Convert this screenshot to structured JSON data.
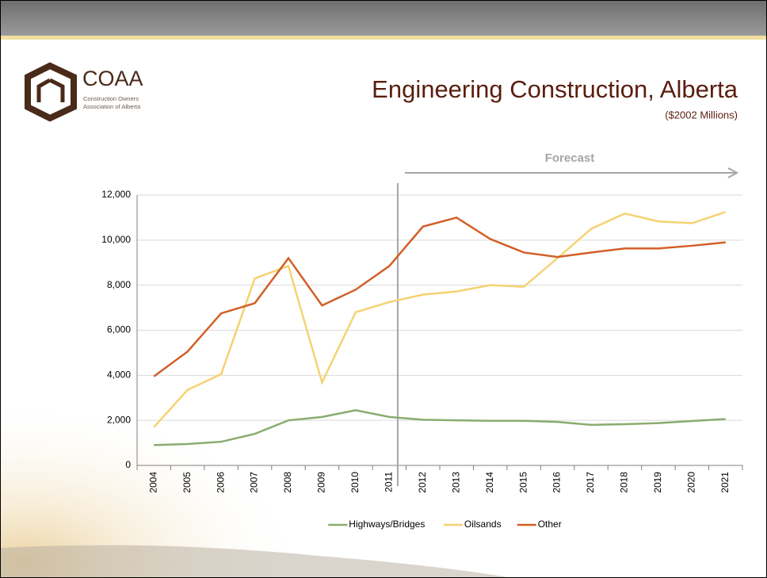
{
  "logo": {
    "name": "COAA",
    "line1": "Construction Owners",
    "line2": "Association of Alberta"
  },
  "chart_data": {
    "type": "line",
    "title": "Engineering Construction, Alberta",
    "subtitle": "($2002 Millions)",
    "annotation": "Forecast",
    "categories": [
      "2004",
      "2005",
      "2006",
      "2007",
      "2008",
      "2009",
      "2010",
      "2011",
      "2012",
      "2013",
      "2014",
      "2015",
      "2016",
      "2017",
      "2018",
      "2019",
      "2020",
      "2021"
    ],
    "series": [
      {
        "name": "Highways/Bridges",
        "color": "#8aac6f",
        "values": [
          900,
          950,
          1050,
          1400,
          2000,
          2150,
          2450,
          2150,
          2030,
          2000,
          1980,
          1980,
          1930,
          1800,
          1830,
          1880,
          1970,
          2060
        ]
      },
      {
        "name": "Oilsands",
        "color": "#f5d272",
        "values": [
          1700,
          3350,
          4050,
          8300,
          8850,
          3680,
          6800,
          7250,
          7580,
          7720,
          8000,
          7930,
          9200,
          10500,
          11180,
          10830,
          10750,
          11250
        ]
      },
      {
        "name": "Other",
        "color": "#d25f27",
        "values": [
          3950,
          5050,
          6750,
          7200,
          9200,
          7100,
          7800,
          8850,
          10600,
          11000,
          10050,
          9450,
          9250,
          9450,
          9630,
          9630,
          9750,
          9900
        ]
      }
    ],
    "ylim": [
      0,
      12000
    ],
    "yticks": [
      0,
      {
        "value": 2000,
        "label": "2,000"
      },
      {
        "value": 4000,
        "label": "4,000"
      },
      {
        "value": 6000,
        "label": "6,000"
      },
      {
        "value": 8000,
        "label": "8,000"
      },
      {
        "value": 10000,
        "label": "10,000"
      },
      {
        "value": 12000,
        "label": "12,000"
      }
    ],
    "grid": true,
    "legend": "bottom"
  }
}
